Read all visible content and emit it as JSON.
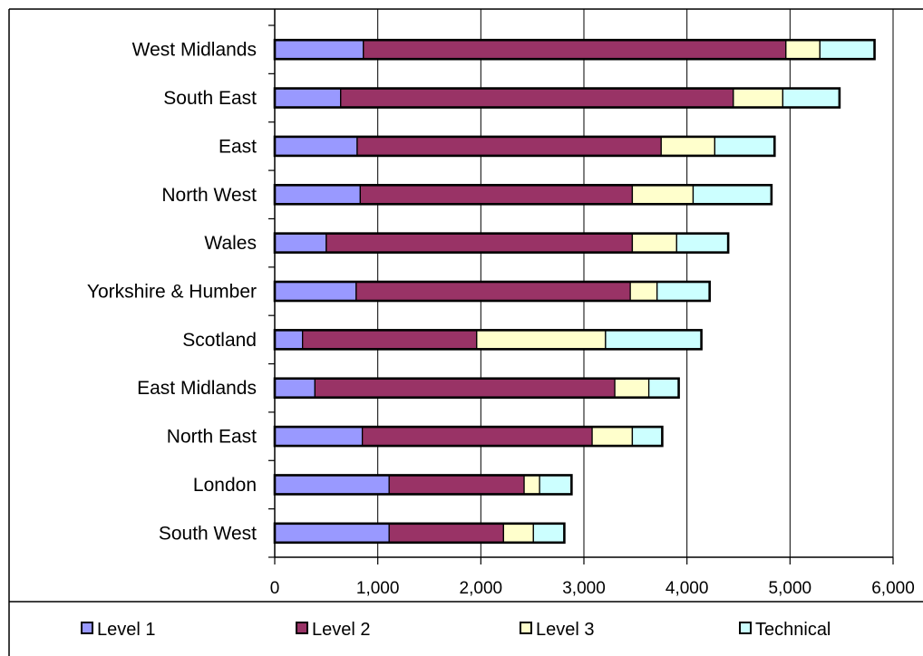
{
  "chart_data": {
    "type": "bar",
    "orientation": "horizontal",
    "stacked": true,
    "categories": [
      "West Midlands",
      "South East",
      "East",
      "North West",
      "Wales",
      "Yorkshire & Humber",
      "Scotland",
      "East Midlands",
      "North East",
      "London",
      "South West"
    ],
    "series": [
      {
        "name": "Level 1",
        "color": "#9999ff",
        "values": [
          860,
          640,
          800,
          830,
          500,
          790,
          270,
          390,
          850,
          1110,
          1110
        ]
      },
      {
        "name": "Level 2",
        "color": "#993366",
        "values": [
          4100,
          3810,
          2950,
          2640,
          2970,
          2660,
          1690,
          2910,
          2230,
          1310,
          1110
        ]
      },
      {
        "name": "Level 3",
        "color": "#ffffcc",
        "values": [
          330,
          480,
          520,
          590,
          430,
          260,
          1250,
          330,
          390,
          150,
          290
        ]
      },
      {
        "name": "Technical",
        "color": "#ccffff",
        "values": [
          530,
          550,
          580,
          760,
          500,
          510,
          930,
          290,
          290,
          310,
          300
        ]
      }
    ],
    "xlim": [
      0,
      6000
    ],
    "ticks": [
      "0",
      "1,000",
      "2,000",
      "3,000",
      "4,000",
      "5,000",
      "6,000"
    ],
    "grid": true,
    "legend_position": "bottom"
  }
}
